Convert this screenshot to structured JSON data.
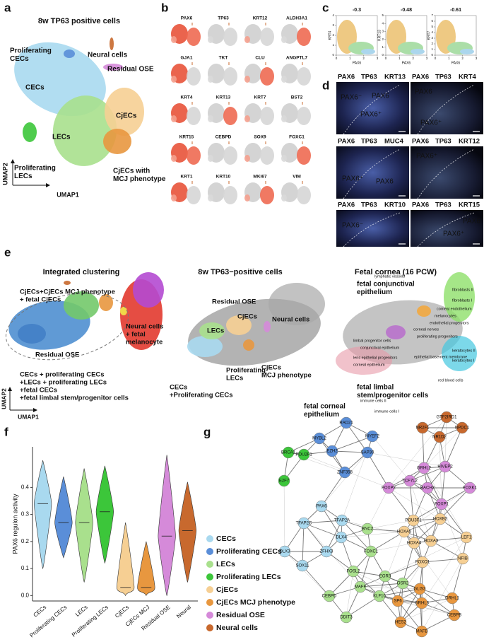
{
  "panels": {
    "a": {
      "label": "a",
      "title": "8w TP63 positive cells",
      "clusters": [
        {
          "lines": [
            "Proliferating",
            "CECs"
          ]
        },
        {
          "lines": [
            "CECs"
          ]
        },
        {
          "lines": [
            "Neural cells"
          ]
        },
        {
          "lines": [
            "Residual OSE"
          ]
        },
        {
          "lines": [
            "CjECs"
          ]
        },
        {
          "lines": [
            "LECs"
          ]
        },
        {
          "lines": [
            "Proliferating",
            "LECs"
          ]
        },
        {
          "lines": [
            "CjECs with",
            "MCJ phenotype"
          ]
        }
      ],
      "y_axis": "UMAP2",
      "x_axis": "UMAP1"
    },
    "b": {
      "label": "b",
      "genes": [
        "PAX6",
        "TP63",
        "KRT12",
        "ALDH3A1",
        "GJA1",
        "TKT",
        "CLU",
        "ANGPTL7",
        "KRT4",
        "KRT13",
        "KRT7",
        "BST2",
        "KRT15",
        "CEBPD",
        "SOX9",
        "FOXC1",
        "KRT1",
        "KRT10",
        "MKI67",
        "VIM"
      ]
    },
    "c": {
      "label": "c",
      "plots": [
        {
          "r": -0.3,
          "x_label": "PAX6",
          "y_label": "KRT4",
          "xticks": [
            0,
            1,
            2,
            3
          ],
          "yticks": [
            0,
            1,
            2,
            3,
            4
          ]
        },
        {
          "r": -0.48,
          "x_label": "PAX6",
          "y_label": "KRT13",
          "xticks": [
            0,
            1,
            2,
            3
          ],
          "yticks": [
            0,
            1,
            2,
            3,
            4,
            5
          ]
        },
        {
          "r": -0.61,
          "x_label": "PAX6",
          "y_label": "KRT7",
          "xticks": [
            0,
            1,
            2,
            3
          ],
          "yticks": [
            0,
            1,
            2,
            3,
            4,
            5,
            6,
            7
          ]
        }
      ]
    },
    "d": {
      "label": "d",
      "images": [
        {
          "stains": [
            "PAX6",
            "TP63",
            "KRT13"
          ],
          "annotations": [
            "PAX6⁻",
            "PAX6",
            "PAX6⁺"
          ]
        },
        {
          "stains": [
            "PAX6",
            "TP63",
            "KRT4"
          ],
          "annotations": [
            "PAX6",
            "PAX6⁺"
          ]
        },
        {
          "stains": [
            "PAX6",
            "TP63",
            "MUC4"
          ],
          "annotations": [
            "PAX6⁺",
            "PAX6"
          ]
        },
        {
          "stains": [
            "PAX6",
            "TP63",
            "KRT12"
          ],
          "annotations": [
            "PAX6⁺"
          ]
        },
        {
          "stains": [
            "PAX6",
            "TP63",
            "KRT10"
          ],
          "annotations": [
            "PAX6⁻"
          ]
        },
        {
          "stains": [
            "PAX6",
            "TP63",
            "KRT15"
          ],
          "annotations": [
            "PAX6⁺",
            "PAX6"
          ]
        }
      ]
    },
    "e": {
      "label": "e",
      "integrated": {
        "title": "Integrated clustering",
        "labels": [
          {
            "lines": [
              "CjECs+CjECs MCJ phenotype",
              "+ fetal CjECs"
            ]
          },
          {
            "lines": [
              "Neural cells",
              "+ fetal",
              "melanocyte"
            ]
          },
          {
            "lines": [
              "Residual OSE"
            ]
          },
          {
            "lines": [
              "CECs + proliferating CECs",
              "+LECs + proliferating LECs",
              "+fetal CECs",
              "+fetal limbal stem/progenitor cells"
            ]
          }
        ],
        "y_axis": "UMAP2",
        "x_axis": "UMAP1"
      },
      "tp63": {
        "title": "8w TP63−positive cells",
        "labels": [
          {
            "lines": [
              "Residual OSE"
            ]
          },
          {
            "lines": [
              "CjECs"
            ]
          },
          {
            "lines": [
              "LECs"
            ]
          },
          {
            "lines": [
              "Neural cells"
            ]
          },
          {
            "lines": [
              "Proliferating",
              "LECs"
            ]
          },
          {
            "lines": [
              "CjECs",
              "MCJ phenotype"
            ]
          },
          {
            "lines": [
              "CECs",
              "+Proliferating CECs"
            ]
          }
        ]
      },
      "fetal": {
        "title": "Fetal cornea (16 PCW)",
        "labels": [
          {
            "lines": [
              "fetal conjunctival",
              "epithelium"
            ]
          },
          {
            "lines": [
              "fetal limbal",
              "stem/progenitor cells"
            ]
          },
          {
            "lines": [
              "fetal corneal",
              "epithelium"
            ]
          }
        ],
        "small_labels": [
          "lymphatic vessels",
          "fibroblasts II",
          "fibroblasts I",
          "corneal endothelium",
          "melanocytes",
          "endothelial progenitors",
          "corneal nerves",
          "limbal progenitor cells",
          "conjunctival epithelium",
          "proliferating progenitors",
          "keratocytes II",
          "epithelial basement membrane",
          "keratocytes I",
          "lens epithelial progenitors",
          "corneal epithelium",
          "red blood cells",
          "immune cells II",
          "immune cells I"
        ]
      }
    },
    "f": {
      "label": "f",
      "chart_data": {
        "type": "violin",
        "y_label": "PAX6 regulon activity",
        "categories": [
          "CECs",
          "Proliferating CECs",
          "LECs",
          "Proliferating LECs",
          "CjECs",
          "CjECs MCJ",
          "Residual OSE",
          "Neural"
        ],
        "colors": [
          "#a9d9ef",
          "#5a8ed8",
          "#a9e08d",
          "#3cc63a",
          "#f6cf93",
          "#e8973f",
          "#d58ad9",
          "#c8692e"
        ],
        "min": [
          0.1,
          0.14,
          0.05,
          0.12,
          0,
          0,
          0,
          0.05
        ],
        "median": [
          0.34,
          0.27,
          0.27,
          0.31,
          0.03,
          0.03,
          0.22,
          0.24
        ],
        "max": [
          0.5,
          0.44,
          0.47,
          0.48,
          0.27,
          0.2,
          0.52,
          0.42
        ],
        "ylim": [
          -0.02,
          0.55
        ],
        "yticks": [
          {
            "value": 0,
            "label": "0.0"
          },
          0.1,
          0.2,
          0.3,
          0.4
        ]
      }
    },
    "g": {
      "label": "g",
      "legend": [
        {
          "name": "CECs",
          "color": "#a9d9ef"
        },
        {
          "name": "Proliferating CECs",
          "color": "#5a8ed8"
        },
        {
          "name": "LECs",
          "color": "#a9e08d"
        },
        {
          "name": "Proliferating LECs",
          "color": "#3cc63a"
        },
        {
          "name": "CjECs",
          "color": "#f6cf93"
        },
        {
          "name": "CjECs MCJ phenotype",
          "color": "#e8973f"
        },
        {
          "name": "Residual OSE",
          "color": "#d58ad9"
        },
        {
          "name": "Neural cells",
          "color": "#c8692e"
        }
      ],
      "nodes": [
        {
          "label": "RAD21",
          "group": 1
        },
        {
          "label": "MYBL2",
          "group": 1
        },
        {
          "label": "MYEF2",
          "group": 1
        },
        {
          "label": "EZH2",
          "group": 1
        },
        {
          "label": "SAP30",
          "group": 1
        },
        {
          "label": "POU2F1",
          "group": 3
        },
        {
          "label": "BRCA1",
          "group": 3
        },
        {
          "label": "E2F7",
          "group": 3
        },
        {
          "label": "ZNF358",
          "group": 1
        },
        {
          "label": "PAX6",
          "group": 0
        },
        {
          "label": "TFAP2A",
          "group": 0
        },
        {
          "label": "TFAP2C",
          "group": 0
        },
        {
          "label": "DLX4",
          "group": 0
        },
        {
          "label": "DLX3",
          "group": 0
        },
        {
          "label": "ZFHX3",
          "group": 0
        },
        {
          "label": "SOX11",
          "group": 0
        },
        {
          "label": "BNC2",
          "group": 2
        },
        {
          "label": "FOXC1",
          "group": 2
        },
        {
          "label": "FOSL2",
          "group": 2
        },
        {
          "label": "EGR3",
          "group": 2
        },
        {
          "label": "OSR2",
          "group": 2
        },
        {
          "label": "CEBPD",
          "group": 2
        },
        {
          "label": "MAFF",
          "group": 2
        },
        {
          "label": "KLF10",
          "group": 2
        },
        {
          "label": "DDIT3",
          "group": 2
        },
        {
          "label": "FOXP2",
          "group": 6
        },
        {
          "label": "GTF2IRD1",
          "group": 7
        },
        {
          "label": "NR2F1",
          "group": 7
        },
        {
          "label": "NPDC1",
          "group": 7
        },
        {
          "label": "NR1D2",
          "group": 7
        },
        {
          "label": "GRHL2",
          "group": 6
        },
        {
          "label": "HIVEP2",
          "group": 6
        },
        {
          "label": "TCF7L2",
          "group": 6
        },
        {
          "label": "BACH2",
          "group": 6
        },
        {
          "label": "FOXK1",
          "group": 6
        },
        {
          "label": "FOXP1",
          "group": 6
        },
        {
          "label": "POU3F1",
          "group": 4
        },
        {
          "label": "HOXB2",
          "group": 4
        },
        {
          "label": "HOXA5",
          "group": 4
        },
        {
          "label": "HOXA3",
          "group": 4
        },
        {
          "label": "LEF1",
          "group": 4
        },
        {
          "label": "HOXA4",
          "group": 4
        },
        {
          "label": "FOXO1",
          "group": 4
        },
        {
          "label": "NFIB",
          "group": 4
        },
        {
          "label": "GLIS3",
          "group": 5
        },
        {
          "label": "SP6",
          "group": 5
        },
        {
          "label": "GRHL3",
          "group": 5
        },
        {
          "label": "GRHL1",
          "group": 5
        },
        {
          "label": "HES2",
          "group": 5
        },
        {
          "label": "CEBPB",
          "group": 5
        },
        {
          "label": "MAFB",
          "group": 5
        }
      ]
    }
  }
}
